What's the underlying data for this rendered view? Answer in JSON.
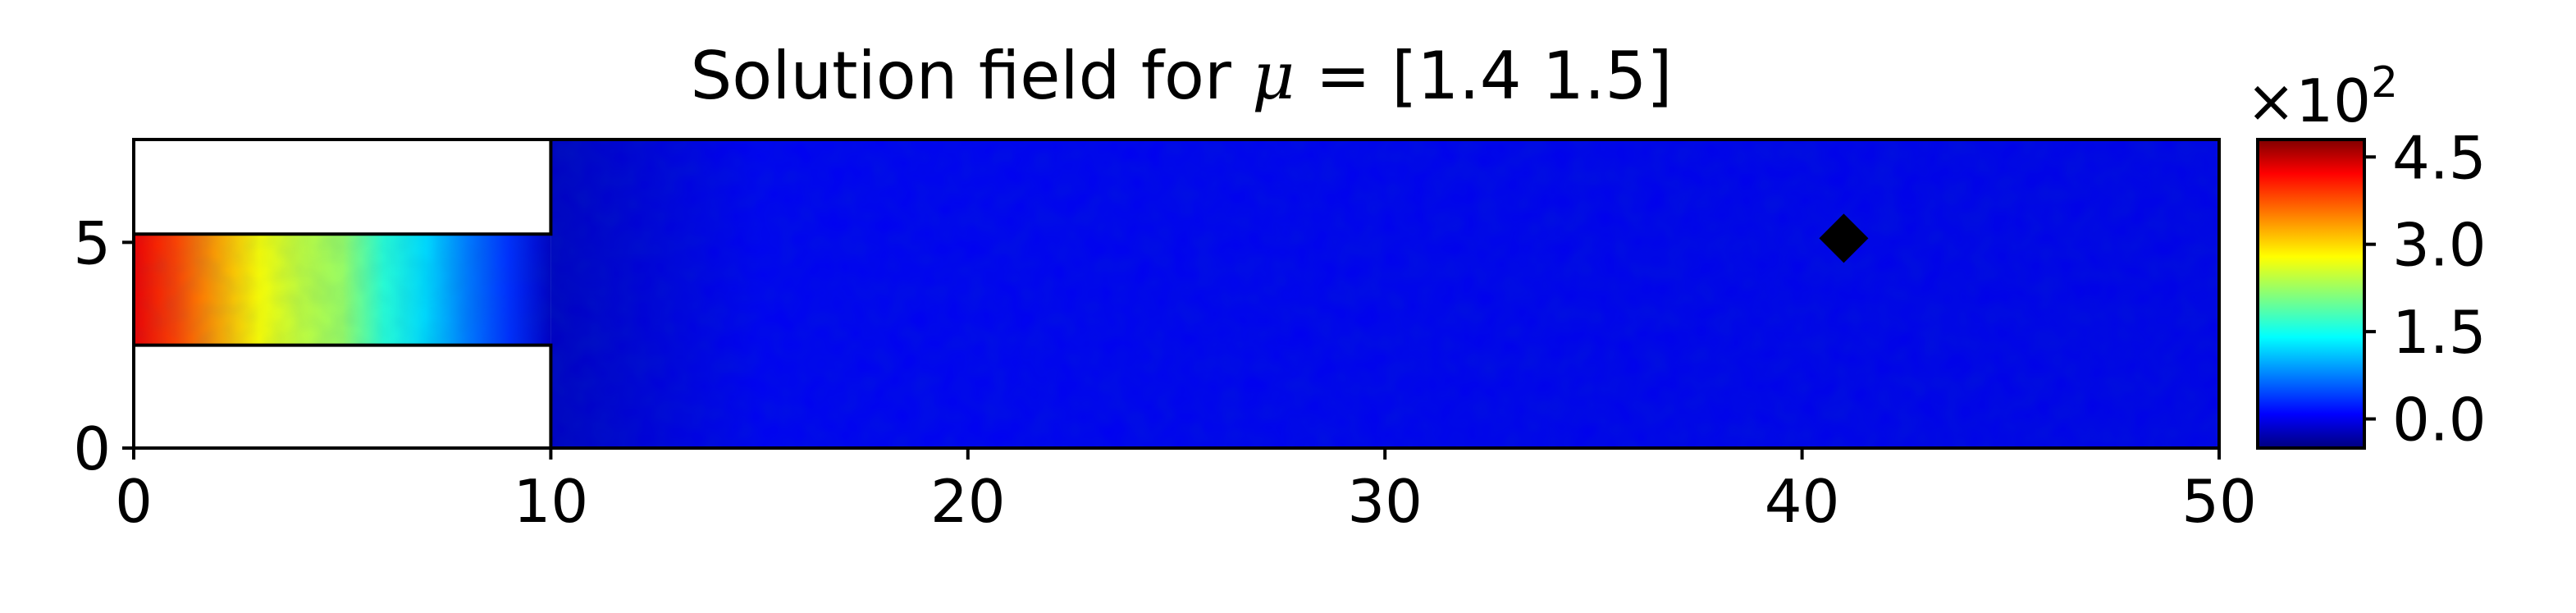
{
  "chart_data": {
    "type": "heatmap",
    "title_prefix": "Solution field for ",
    "title_symbol": "μ",
    "title_suffix": " = [1.4 1.5]",
    "xlim": [
      0,
      50
    ],
    "ylim": [
      0,
      7.5
    ],
    "x_ticks": [
      0,
      10,
      20,
      30,
      40,
      50
    ],
    "x_tick_labels": [
      "0",
      "10",
      "20",
      "30",
      "40",
      "50"
    ],
    "y_ticks": [
      0,
      5
    ],
    "y_tick_labels": [
      "0",
      "5"
    ],
    "colormap": "jet",
    "grid": false,
    "domain_regions": [
      {
        "name": "inlet-channel",
        "x": [
          0,
          10
        ],
        "y": [
          2.5,
          5.2
        ]
      },
      {
        "name": "main-chamber",
        "x": [
          10,
          50
        ],
        "y": [
          0,
          7.5
        ]
      }
    ],
    "field_profile": [
      {
        "x": 0,
        "value": 420
      },
      {
        "x": 1,
        "value": 380
      },
      {
        "x": 2,
        "value": 330
      },
      {
        "x": 3,
        "value": 280
      },
      {
        "x": 4,
        "value": 250
      },
      {
        "x": 5,
        "value": 230
      },
      {
        "x": 6,
        "value": 170
      },
      {
        "x": 7,
        "value": 130
      },
      {
        "x": 8,
        "value": 80
      },
      {
        "x": 9,
        "value": 40
      },
      {
        "x": 10,
        "value": -15
      },
      {
        "x": 12,
        "value": -5
      },
      {
        "x": 15,
        "value": 10
      },
      {
        "x": 20,
        "value": 10
      },
      {
        "x": 50,
        "value": 5
      }
    ],
    "marker": {
      "x": 41,
      "y": 5.1,
      "shape": "diamond",
      "color": "#000000"
    },
    "colorbar": {
      "range": [
        -50,
        480
      ],
      "ticks": [
        0,
        150,
        300,
        450
      ],
      "tick_labels": [
        "0.0",
        "1.5",
        "3.0",
        "4.5"
      ],
      "multiplier_base": "×10",
      "multiplier_exp": "2"
    }
  }
}
